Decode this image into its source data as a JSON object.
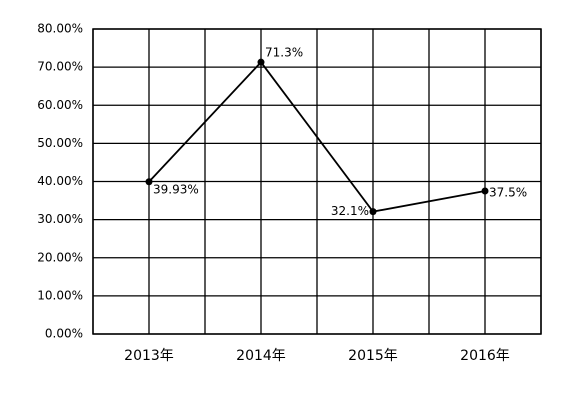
{
  "chart_data": {
    "type": "line",
    "categories": [
      "2013年",
      "2014年",
      "2015年",
      "2016年"
    ],
    "values": [
      39.93,
      71.3,
      32.1,
      37.5
    ],
    "value_labels": [
      "39.93%",
      "71.3%",
      "32.1%",
      "37.5%"
    ],
    "color": "#000000",
    "ylim": [
      0,
      80
    ],
    "yticks": [
      {
        "value": 0,
        "label": "0.00%"
      },
      {
        "value": 10,
        "label": "10.00%"
      },
      {
        "value": 20,
        "label": "20.00%"
      },
      {
        "value": 30,
        "label": "30.00%"
      },
      {
        "value": 40,
        "label": "40.00%"
      },
      {
        "value": 50,
        "label": "50.00%"
      },
      {
        "value": 60,
        "label": "60.00%"
      },
      {
        "value": 70,
        "label": "70.00%"
      },
      {
        "value": 80,
        "label": "80.00%"
      }
    ],
    "grid": true
  }
}
